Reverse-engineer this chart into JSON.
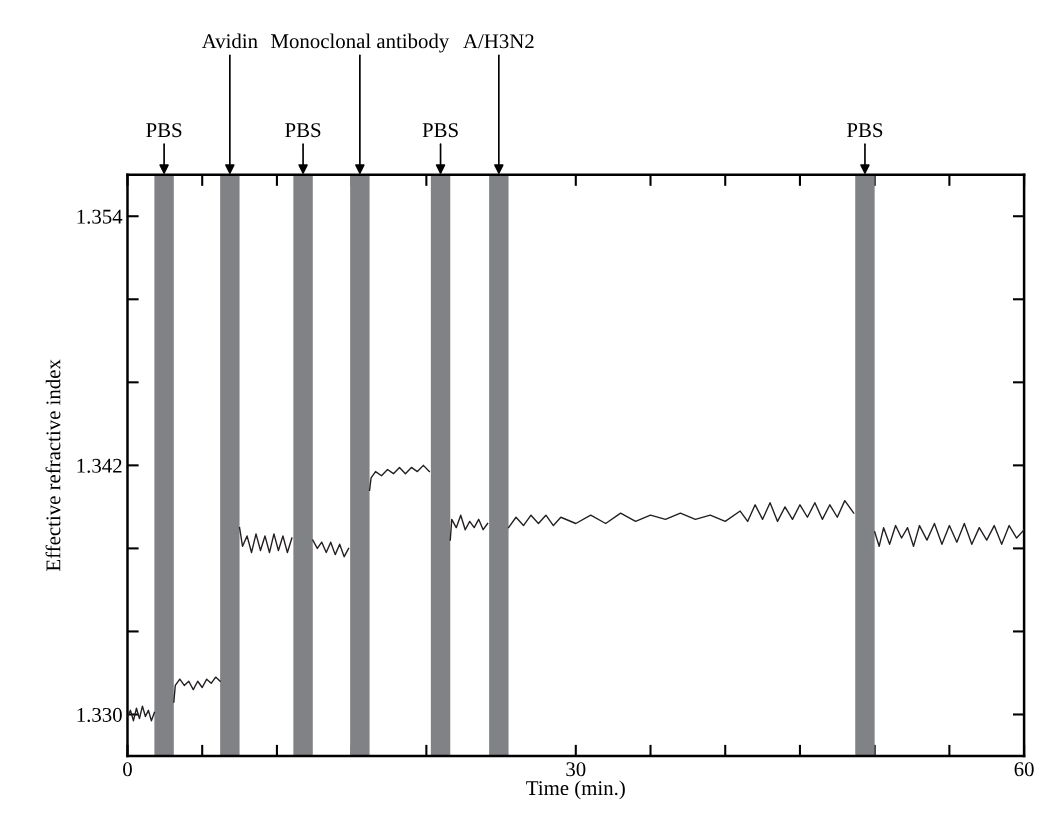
{
  "chart_data": {
    "type": "line",
    "xlabel": "Time (min.)",
    "ylabel": "Effective refractive index",
    "xlim": [
      0,
      60
    ],
    "ylim": [
      1.328,
      1.356
    ],
    "xticks": [
      0,
      {
        "value": 5,
        "label": null
      },
      {
        "value": 10,
        "label": null
      },
      {
        "value": 15,
        "label": null
      },
      {
        "value": 20,
        "label": null
      },
      {
        "value": 25,
        "label": null
      },
      30,
      {
        "value": 35,
        "label": null
      },
      {
        "value": 40,
        "label": null
      },
      {
        "value": 45,
        "label": null
      },
      {
        "value": 50,
        "label": null
      },
      {
        "value": 55,
        "label": null
      },
      60
    ],
    "yticks": [
      {
        "value": 1.33,
        "label": "1.330"
      },
      {
        "value": 1.334,
        "label": null
      },
      {
        "value": 1.338,
        "label": null
      },
      {
        "value": 1.342,
        "label": "1.342"
      },
      {
        "value": 1.346,
        "label": null
      },
      {
        "value": 1.35,
        "label": null
      },
      {
        "value": 1.354,
        "label": "1.354"
      }
    ],
    "grid": false,
    "legend": false,
    "marker": "none",
    "line_style": "solid",
    "bands": [
      {
        "axis": "x",
        "from": 1.8,
        "to": 3.1,
        "label": "PBS",
        "color": "#808285"
      },
      {
        "axis": "x",
        "from": 6.2,
        "to": 7.5,
        "label": "Avidin",
        "color": "#808285"
      },
      {
        "axis": "x",
        "from": 11.1,
        "to": 12.4,
        "label": "PBS",
        "color": "#808285"
      },
      {
        "axis": "x",
        "from": 14.9,
        "to": 16.2,
        "label": "Monoclonal antibody",
        "color": "#808285"
      },
      {
        "axis": "x",
        "from": 20.3,
        "to": 21.6,
        "label": "PBS",
        "color": "#808285"
      },
      {
        "axis": "x",
        "from": 24.2,
        "to": 25.5,
        "label": "A/H3N2",
        "color": "#808285"
      },
      {
        "axis": "x",
        "from": 48.7,
        "to": 50.0,
        "label": "PBS",
        "color": "#808285"
      }
    ],
    "series": [
      {
        "color": "#231f20",
        "x": [
          0,
          0.2,
          0.4,
          0.6,
          0.8,
          1.0,
          1.2,
          1.4,
          1.6,
          1.8,
          2.4,
          3.1,
          3.2,
          3.5,
          3.8,
          4.1,
          4.4,
          4.7,
          5.0,
          5.3,
          5.6,
          5.9,
          6.2,
          6.8,
          7.5,
          7.7,
          8.0,
          8.3,
          8.6,
          8.9,
          9.2,
          9.5,
          9.8,
          10.1,
          10.4,
          10.7,
          11.0,
          11.7,
          12.4,
          12.7,
          13.0,
          13.3,
          13.6,
          13.9,
          14.2,
          14.5,
          14.8,
          15.5,
          16.2,
          16.3,
          16.6,
          17.0,
          17.4,
          17.8,
          18.2,
          18.6,
          19.0,
          19.4,
          19.8,
          20.2,
          21.0,
          21.6,
          21.7,
          22.0,
          22.3,
          22.6,
          22.9,
          23.2,
          23.5,
          23.8,
          24.1,
          24.8,
          25.5,
          26,
          26.5,
          27,
          27.5,
          28,
          28.5,
          29,
          30,
          31,
          32,
          33,
          34,
          35,
          36,
          37,
          38,
          39,
          40,
          41,
          41.5,
          42,
          42.5,
          43,
          43.5,
          44,
          44.5,
          45,
          45.5,
          46,
          46.5,
          47,
          47.5,
          48,
          48.6,
          49.3,
          50.0,
          50.3,
          50.6,
          51,
          51.4,
          51.8,
          52.2,
          52.6,
          53,
          53.5,
          54,
          54.5,
          55,
          55.5,
          56,
          56.5,
          57,
          57.5,
          58,
          58.5,
          59,
          59.5,
          60
        ],
        "values": [
          1.3299,
          1.3302,
          1.3297,
          1.3303,
          1.3298,
          1.3304,
          1.3299,
          1.3302,
          1.3297,
          1.3301,
          null,
          1.3306,
          1.3314,
          1.3317,
          1.3314,
          1.3316,
          1.3312,
          1.3316,
          1.3313,
          1.3317,
          1.3315,
          1.3318,
          1.3316,
          null,
          1.339,
          1.3381,
          1.3386,
          1.3378,
          1.3387,
          1.3379,
          1.3386,
          1.3378,
          1.3387,
          1.3379,
          1.3386,
          1.3378,
          1.3385,
          null,
          1.3384,
          1.338,
          1.3383,
          1.3378,
          1.3383,
          1.3377,
          1.3382,
          1.3376,
          1.338,
          null,
          1.3408,
          1.3414,
          1.3417,
          1.3415,
          1.3418,
          1.3416,
          1.3419,
          1.3416,
          1.3419,
          1.3417,
          1.342,
          1.3417,
          null,
          1.3384,
          1.3394,
          1.339,
          1.3396,
          1.3389,
          1.3393,
          1.339,
          1.3394,
          1.3389,
          1.3392,
          null,
          1.339,
          1.3395,
          1.3391,
          1.3396,
          1.3392,
          1.3396,
          1.3391,
          1.3395,
          1.3392,
          1.3396,
          1.3392,
          1.3397,
          1.3393,
          1.3396,
          1.3394,
          1.3397,
          1.3394,
          1.3396,
          1.3393,
          1.3398,
          1.3393,
          1.3401,
          1.3394,
          1.3402,
          1.3393,
          1.34,
          1.3394,
          1.3401,
          1.3395,
          1.3402,
          1.3394,
          1.3401,
          1.3395,
          1.3403,
          1.3397,
          null,
          1.3388,
          1.3381,
          1.339,
          1.3382,
          1.3391,
          1.3385,
          1.339,
          1.3381,
          1.3391,
          1.3384,
          1.3392,
          1.3382,
          1.3391,
          1.3383,
          1.3392,
          1.3382,
          1.339,
          1.3384,
          1.3391,
          1.3382,
          1.3391,
          1.3385,
          1.3389
        ]
      }
    ]
  }
}
